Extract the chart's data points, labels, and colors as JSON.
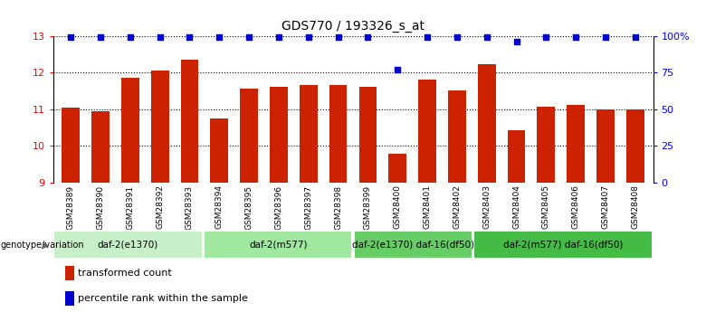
{
  "title": "GDS770 / 193326_s_at",
  "samples": [
    "GSM28389",
    "GSM28390",
    "GSM28391",
    "GSM28392",
    "GSM28393",
    "GSM28394",
    "GSM28395",
    "GSM28396",
    "GSM28397",
    "GSM28398",
    "GSM28399",
    "GSM28400",
    "GSM28401",
    "GSM28402",
    "GSM28403",
    "GSM28404",
    "GSM28405",
    "GSM28406",
    "GSM28407",
    "GSM28408"
  ],
  "bar_values": [
    11.05,
    10.95,
    11.85,
    12.05,
    12.35,
    10.75,
    11.55,
    11.6,
    11.65,
    11.65,
    11.6,
    9.78,
    11.8,
    11.52,
    12.22,
    10.42,
    11.08,
    11.12,
    11.0,
    11.0
  ],
  "percentile_values": [
    99,
    99,
    99,
    99,
    99,
    99,
    99,
    99,
    99,
    99,
    99,
    77,
    99,
    99,
    99,
    96,
    99,
    99,
    99,
    99
  ],
  "bar_color": "#cc2200",
  "dot_color": "#0000cc",
  "ylim_left": [
    9,
    13
  ],
  "ylim_right": [
    0,
    100
  ],
  "yticks_left": [
    9,
    10,
    11,
    12,
    13
  ],
  "yticks_right": [
    0,
    25,
    50,
    75,
    100
  ],
  "ytick_labels_right": [
    "0",
    "25",
    "50",
    "75",
    "100%"
  ],
  "groups": [
    {
      "label": "daf-2(e1370)",
      "start": 0,
      "end": 5,
      "color": "#c8f0c8"
    },
    {
      "label": "daf-2(m577)",
      "start": 5,
      "end": 10,
      "color": "#a0e8a0"
    },
    {
      "label": "daf-2(e1370) daf-16(df50)",
      "start": 10,
      "end": 14,
      "color": "#66cc66"
    },
    {
      "label": "daf-2(m577) daf-16(df50)",
      "start": 14,
      "end": 20,
      "color": "#44bb44"
    }
  ],
  "genotype_label": "genotype/variation",
  "legend_items": [
    {
      "color": "#cc2200",
      "label": "transformed count"
    },
    {
      "color": "#0000cc",
      "label": "percentile rank within the sample"
    }
  ],
  "xlabel_bg_color": "#cccccc",
  "background_color": "#ffffff"
}
